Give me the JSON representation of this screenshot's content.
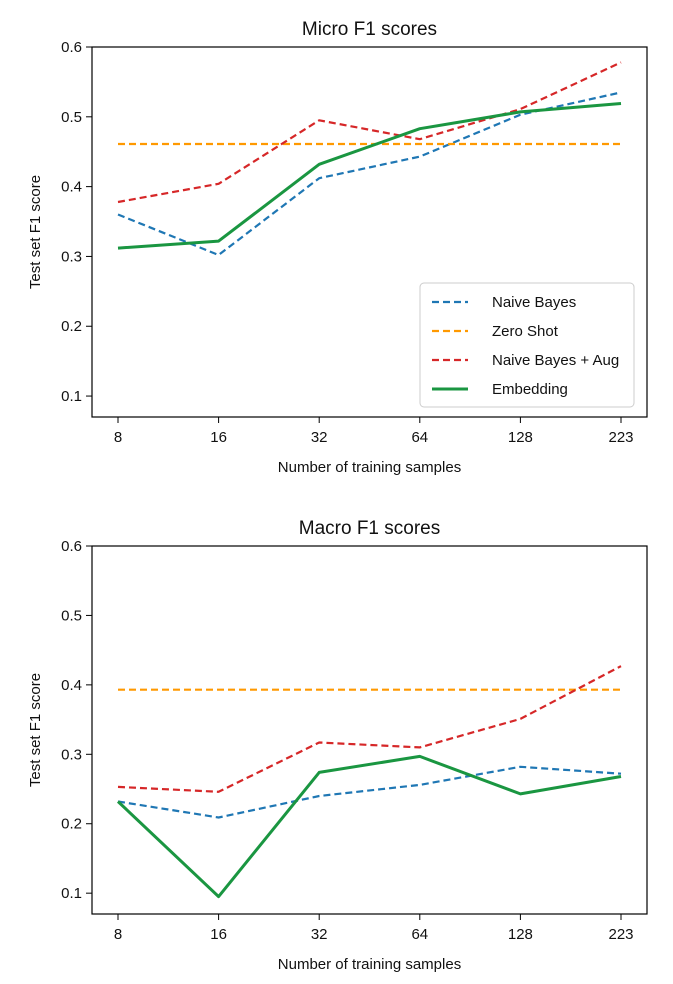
{
  "chart_data": [
    {
      "type": "line",
      "title": "Micro F1 scores",
      "xlabel": "Number of training samples",
      "ylabel": "Test set F1 score",
      "categories": [
        "8",
        "16",
        "32",
        "64",
        "128",
        "223"
      ],
      "ylim": [
        0.07,
        0.6
      ],
      "yticks": [
        0.1,
        0.2,
        0.3,
        0.4,
        0.5,
        0.6
      ],
      "legend": "lower-right",
      "series": [
        {
          "name": "Naive Bayes",
          "color": "#1f77b4",
          "dash": "dashed",
          "values": [
            0.36,
            0.302,
            0.412,
            0.443,
            0.503,
            0.535
          ]
        },
        {
          "name": "Zero Shot",
          "color": "#ff9900",
          "dash": "dashed",
          "values": [
            0.461,
            0.461,
            0.461,
            0.461,
            0.461,
            0.461
          ]
        },
        {
          "name": "Naive Bayes + Aug",
          "color": "#d62728",
          "dash": "dashed",
          "values": [
            0.378,
            0.404,
            0.495,
            0.468,
            0.511,
            0.578
          ]
        },
        {
          "name": "Embedding",
          "color": "#1a9641",
          "dash": "solid",
          "values": [
            0.312,
            0.322,
            0.432,
            0.483,
            0.507,
            0.519
          ]
        }
      ]
    },
    {
      "type": "line",
      "title": "Macro F1 scores",
      "xlabel": "Number of training samples",
      "ylabel": "Test set F1 score",
      "categories": [
        "8",
        "16",
        "32",
        "64",
        "128",
        "223"
      ],
      "ylim": [
        0.07,
        0.6
      ],
      "yticks": [
        0.1,
        0.2,
        0.3,
        0.4,
        0.5,
        0.6
      ],
      "series": [
        {
          "name": "Naive Bayes",
          "color": "#1f77b4",
          "dash": "dashed",
          "values": [
            0.232,
            0.209,
            0.24,
            0.256,
            0.282,
            0.272
          ]
        },
        {
          "name": "Zero Shot",
          "color": "#ff9900",
          "dash": "dashed",
          "values": [
            0.393,
            0.393,
            0.393,
            0.393,
            0.393,
            0.393
          ]
        },
        {
          "name": "Naive Bayes + Aug",
          "color": "#d62728",
          "dash": "dashed",
          "values": [
            0.253,
            0.246,
            0.317,
            0.31,
            0.351,
            0.427
          ]
        },
        {
          "name": "Embedding",
          "color": "#1a9641",
          "dash": "solid",
          "values": [
            0.232,
            0.095,
            0.274,
            0.297,
            0.243,
            0.268
          ]
        }
      ]
    }
  ]
}
